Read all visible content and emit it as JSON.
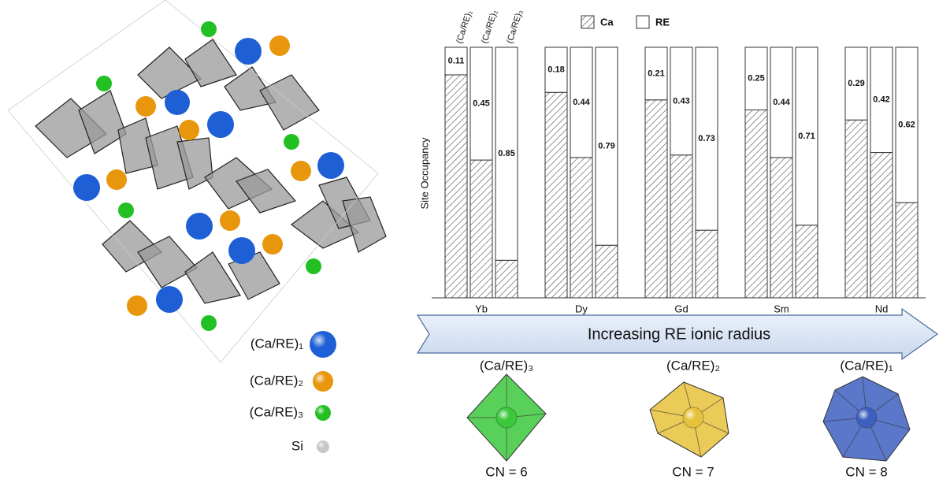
{
  "structure_legend": [
    {
      "label": "(Ca/RE)₁",
      "color": "#1f5fd6"
    },
    {
      "label": "(Ca/RE)₂",
      "color": "#e8960c"
    },
    {
      "label": "(Ca/RE)₃",
      "color": "#22c022"
    },
    {
      "label": "Si",
      "color": "#c8c8c8"
    }
  ],
  "chart_data": {
    "type": "stacked_bar",
    "y_label": "Site Occupancy",
    "categories": [
      "Yb",
      "Dy",
      "Gd",
      "Sm",
      "Nd"
    ],
    "ylim": [
      0,
      1
    ],
    "legend": [
      {
        "name": "Ca",
        "fill": "hatch"
      },
      {
        "name": "RE",
        "color": "#ffffff"
      }
    ],
    "sites": [
      {
        "label": "(Ca/RE)₁",
        "ca": [
          0.89,
          0.82,
          0.79,
          0.75,
          0.71
        ],
        "re": [
          0.11,
          0.18,
          0.21,
          0.25,
          0.29
        ]
      },
      {
        "label": "(Ca/RE)₂",
        "ca": [
          0.55,
          0.56,
          0.57,
          0.56,
          0.58
        ],
        "re": [
          0.45,
          0.44,
          0.43,
          0.44,
          0.42
        ]
      },
      {
        "label": "(Ca/RE)₃",
        "ca": [
          0.15,
          0.21,
          0.27,
          0.29,
          0.38
        ],
        "re": [
          0.85,
          0.79,
          0.73,
          0.71,
          0.62
        ]
      }
    ]
  },
  "arrow": {
    "label": "Increasing RE ionic radius"
  },
  "polyhedra": [
    {
      "label": "(Ca/RE)₃",
      "cn": "CN = 6",
      "color": "#3cc83c"
    },
    {
      "label": "(Ca/RE)₂",
      "cn": "CN = 7",
      "color": "#e6c23a"
    },
    {
      "label": "(Ca/RE)₁",
      "cn": "CN = 8",
      "color": "#3d5fc0"
    }
  ]
}
